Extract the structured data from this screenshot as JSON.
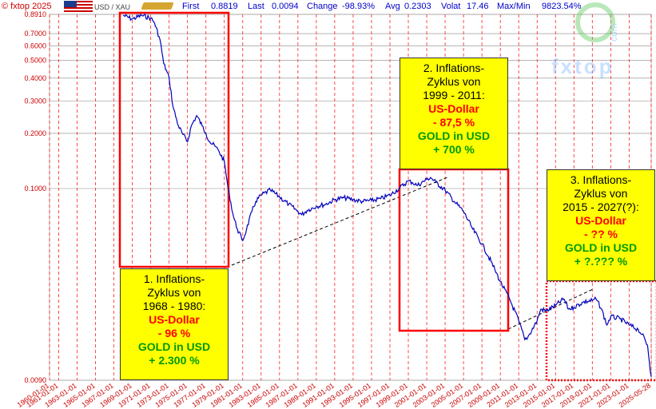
{
  "header": {
    "copyright": "© fxtop 2025",
    "pair": "USD / XAU",
    "first_label": "First",
    "first_value": "0.8819",
    "last_label": "Last",
    "last_value": "0.0094",
    "change_label": "Change",
    "change_value": "-98.93%",
    "avg_label": "Avg",
    "avg_value": "0.2303",
    "volat_label": "Volat",
    "volat_value": "17.46",
    "maxmin_label": "Max/Min",
    "maxmin_value": "9823.54%"
  },
  "watermark": {
    "text": "fxtop",
    "suffix": "com"
  },
  "annotations": {
    "cycle1": {
      "l1": "1. Inflations-",
      "l2": "Zyklus von",
      "l3": "1968 - 1980:",
      "usd": "US-Dollar",
      "usd_change": "- 96 %",
      "gold": "GOLD in USD",
      "gold_change": "+ 2.300 %"
    },
    "cycle2": {
      "l1": "2. Inflations-",
      "l2": "Zyklus von",
      "l3": "1999 - 2011:",
      "usd": "US-Dollar",
      "usd_change": "- 87,5 %",
      "gold": "GOLD in USD",
      "gold_change": "+ 700 %"
    },
    "cycle3": {
      "l1": "3. Inflations-",
      "l2": "Zyklus von",
      "l3": "2015 - 2027(?):",
      "usd": "US-Dollar",
      "usd_change": "- ?? %",
      "gold": "GOLD in USD",
      "gold_change": "+ ?.??? %"
    }
  },
  "colors": {
    "series": "#0000bb",
    "grid_vertical": "#ff0000",
    "grid_horizontal": "#888888",
    "highlight": "#ff0000",
    "box": "#ffff00"
  },
  "chart_data": {
    "type": "line",
    "title": "",
    "xlabel": "",
    "ylabel": "",
    "yscale": "log",
    "ylim": [
      0.0094,
      0.8819
    ],
    "y_ticks": [
      "0.8910",
      "0.7000",
      "0.6000",
      "0.5000",
      "0.4000",
      "0.3000",
      "0.2000",
      "0.1000",
      "0.0090"
    ],
    "x_ticks": [
      "1960-01-01",
      "1961-01-01",
      "1963-01-01",
      "1965-01-01",
      "1967-01-01",
      "1969-01-01",
      "1971-01-01",
      "1973-01-01",
      "1975-01-01",
      "1977-01-01",
      "1979-01-01",
      "1981-01-01",
      "1983-01-01",
      "1985-01-01",
      "1987-01-01",
      "1989-01-01",
      "1991-01-01",
      "1993-01-01",
      "1995-01-01",
      "1997-01-01",
      "1999-01-01",
      "2001-01-01",
      "2003-01-01",
      "2005-01-01",
      "2007-01-01",
      "2009-01-01",
      "2011-01-01",
      "2013-01-01",
      "2015-01-01",
      "2017-01-01",
      "2019-01-01",
      "2021-01-01",
      "2023-01-01",
      "2025-05-28"
    ],
    "series": [
      {
        "x": [
          "1968-01-01",
          "1969-01-01",
          "1970-01-01",
          "1971-01-01",
          "1971-06-01",
          "1972-01-01",
          "1972-06-01",
          "1973-01-01",
          "1973-06-01",
          "1974-01-01",
          "1974-06-01",
          "1975-01-01",
          "1975-06-01",
          "1976-01-01",
          "1976-08-01",
          "1977-01-01",
          "1977-06-01",
          "1978-01-01",
          "1978-06-01",
          "1979-01-01",
          "1979-06-01",
          "1980-01-01",
          "1980-06-01",
          "1981-01-01",
          "1981-06-01",
          "1982-01-01",
          "1982-06-01",
          "1983-01-01",
          "1984-01-01",
          "1985-01-01",
          "1986-01-01",
          "1987-01-01",
          "1987-06-01",
          "1988-01-01",
          "1989-01-01",
          "1990-01-01",
          "1991-01-01",
          "1992-01-01",
          "1993-01-01",
          "1994-01-01",
          "1995-01-01",
          "1996-01-01",
          "1997-01-01",
          "1998-01-01",
          "1999-01-01",
          "1999-06-01",
          "2000-01-01",
          "2001-01-01",
          "2001-06-01",
          "2002-01-01",
          "2003-01-01",
          "2004-01-01",
          "2005-01-01",
          "2006-01-01",
          "2007-01-01",
          "2008-01-01",
          "2008-06-01",
          "2009-01-01",
          "2010-01-01",
          "2011-01-01",
          "2011-09-01",
          "2012-01-01",
          "2013-01-01",
          "2013-06-01",
          "2014-01-01",
          "2015-01-01",
          "2015-12-01",
          "2016-06-01",
          "2017-01-01",
          "2018-01-01",
          "2019-01-01",
          "2019-06-01",
          "2020-01-01",
          "2020-08-01",
          "2021-01-01",
          "2022-01-01",
          "2023-01-01",
          "2024-01-01",
          "2024-06-01",
          "2025-01-01",
          "2025-05-28"
        ],
        "y": [
          0.88,
          0.84,
          0.88,
          0.85,
          0.8,
          0.65,
          0.48,
          0.4,
          0.28,
          0.22,
          0.2,
          0.18,
          0.22,
          0.25,
          0.22,
          0.2,
          0.18,
          0.17,
          0.16,
          0.14,
          0.1,
          0.07,
          0.06,
          0.052,
          0.06,
          0.075,
          0.085,
          0.092,
          0.098,
          0.09,
          0.082,
          0.075,
          0.072,
          0.076,
          0.08,
          0.082,
          0.087,
          0.089,
          0.087,
          0.085,
          0.086,
          0.088,
          0.092,
          0.1,
          0.11,
          0.108,
          0.104,
          0.112,
          0.115,
          0.108,
          0.098,
          0.085,
          0.075,
          0.06,
          0.05,
          0.04,
          0.036,
          0.031,
          0.025,
          0.019,
          0.015,
          0.0155,
          0.019,
          0.022,
          0.0215,
          0.023,
          0.025,
          0.022,
          0.0225,
          0.024,
          0.0245,
          0.025,
          0.022,
          0.018,
          0.02,
          0.0195,
          0.018,
          0.017,
          0.016,
          0.014,
          0.0094
        ]
      }
    ]
  }
}
